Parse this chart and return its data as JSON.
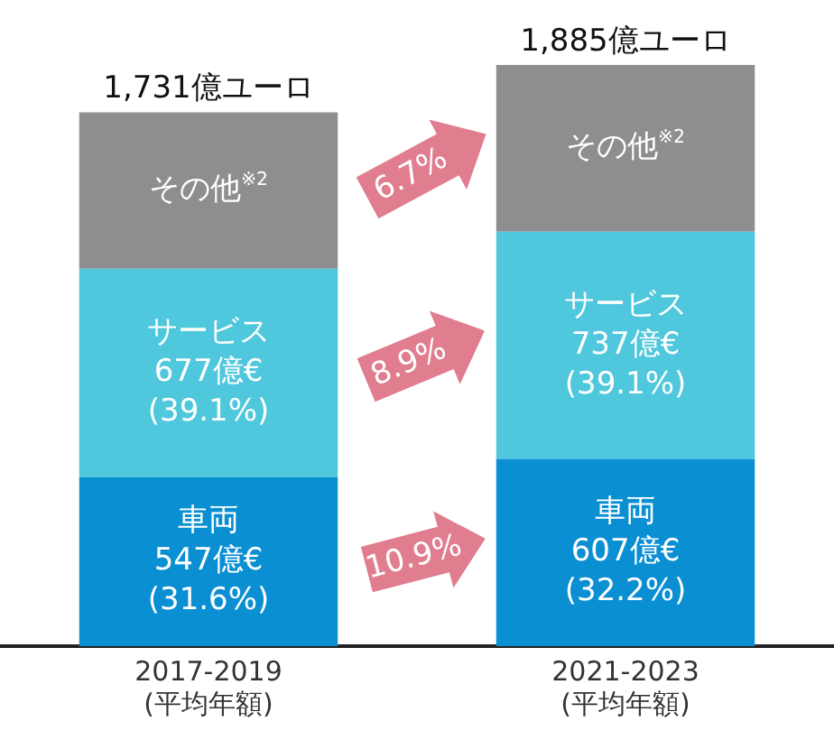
{
  "chart_data": {
    "type": "bar",
    "stacked": true,
    "categories": [
      "2017-2019\n(平均年額)",
      "2021-2023\n(平均年額)"
    ],
    "series": [
      {
        "name": "車両",
        "color": "#0a8fd3",
        "values": [
          547,
          607
        ],
        "value_labels": [
          "547億€\n(31.6%)",
          "607億€\n(32.2%)"
        ]
      },
      {
        "name": "サービス",
        "color": "#4fc7dc",
        "values": [
          677,
          737
        ],
        "value_labels": [
          "677億€\n(39.1%)",
          "737億€\n(39.1%)"
        ]
      },
      {
        "name": "その他$^{※2}$",
        "color": "#8e8e90",
        "values": [
          507,
          541
        ]
      }
    ],
    "totals": [
      "1,731億ユーロ",
      "1,885億ユーロ"
    ],
    "annotations": [
      "10.9%",
      "8.9%",
      "6.7%"
    ]
  }
}
